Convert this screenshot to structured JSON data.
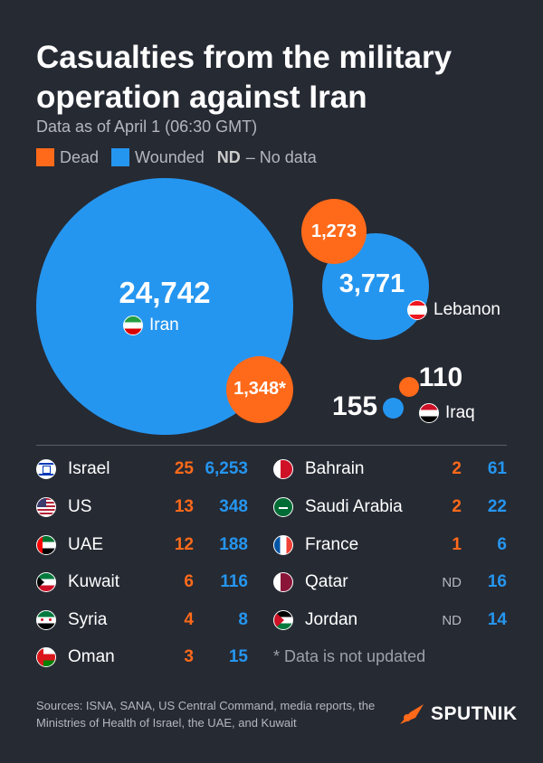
{
  "header": {
    "title": "Casualties from the military operation against Iran",
    "subtitle": "Data as of April 1 (06:30 GMT)"
  },
  "legend": {
    "dead_label": "Dead",
    "wounded_label": "Wounded",
    "nd_abbr": "ND",
    "nd_text": "– No data"
  },
  "colors": {
    "dead": "#ff6a1a",
    "wounded": "#2596f0",
    "background": "#262a33"
  },
  "chart_data": {
    "type": "bubble",
    "title": "Casualties from the military operation against Iran",
    "subtitle": "Data as of April 1 (06:30 GMT)",
    "legend": [
      "Dead",
      "Wounded"
    ],
    "bubbles": [
      {
        "country": "Iran",
        "wounded": "24,742",
        "dead": "1,348*"
      },
      {
        "country": "Lebanon",
        "wounded": "3,771",
        "dead": "1,273"
      },
      {
        "country": "Iraq",
        "wounded": "155",
        "dead": "110"
      }
    ],
    "table_left": [
      {
        "country": "Israel",
        "dead": "25",
        "wounded": "6,253",
        "flag": "israel-flag-icon"
      },
      {
        "country": "US",
        "dead": "13",
        "wounded": "348",
        "flag": "us-flag-icon"
      },
      {
        "country": "UAE",
        "dead": "12",
        "wounded": "188",
        "flag": "uae-flag-icon"
      },
      {
        "country": "Kuwait",
        "dead": "6",
        "wounded": "116",
        "flag": "kuwait-flag-icon"
      },
      {
        "country": "Syria",
        "dead": "4",
        "wounded": "8",
        "flag": "syria-flag-icon"
      },
      {
        "country": "Oman",
        "dead": "3",
        "wounded": "15",
        "flag": "oman-flag-icon"
      }
    ],
    "table_right": [
      {
        "country": "Bahrain",
        "dead": "2",
        "wounded": "61",
        "flag": "bahrain-flag-icon"
      },
      {
        "country": "Saudi Arabia",
        "dead": "2",
        "wounded": "22",
        "flag": "saudi-flag-icon"
      },
      {
        "country": "France",
        "dead": "1",
        "wounded": "6",
        "flag": "france-flag-icon"
      },
      {
        "country": "Qatar",
        "dead": "ND",
        "wounded": "16",
        "flag": "qatar-flag-icon"
      },
      {
        "country": "Jordan",
        "dead": "ND",
        "wounded": "14",
        "flag": "jordan-flag-icon"
      }
    ]
  },
  "footnote": "* Data is not updated",
  "sources": "Sources: ISNA, SANA, US Central Command, media reports, the Ministries of Health of Israel, the UAE, and Kuwait",
  "brand": {
    "name": "SPUTNIK",
    "icon": "sputnik-logo-icon"
  }
}
